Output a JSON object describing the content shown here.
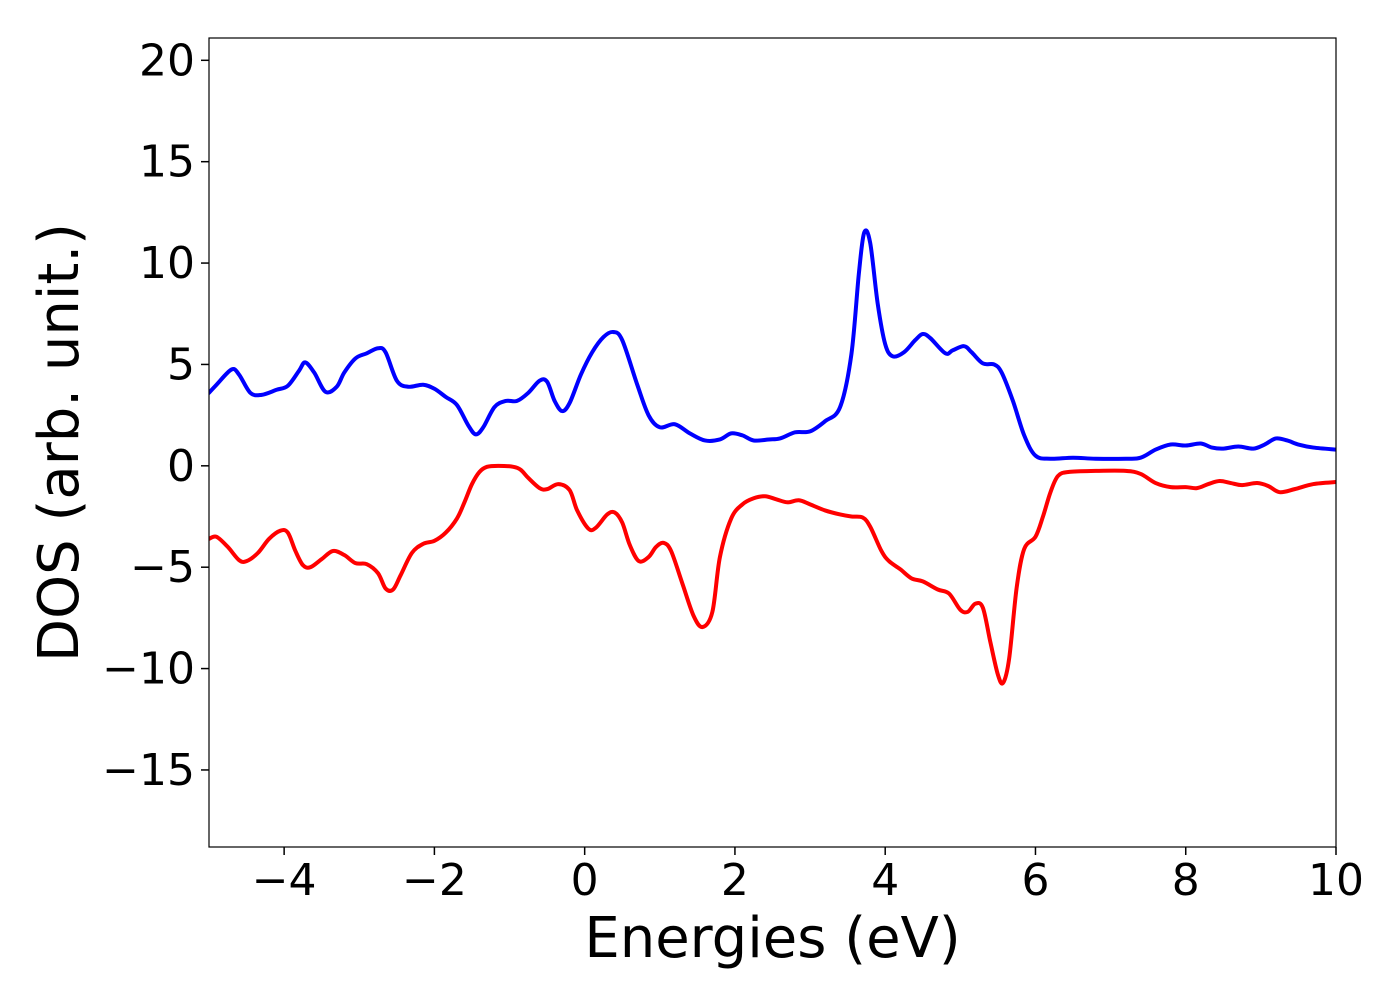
{
  "chart_data": {
    "type": "line",
    "title": "",
    "xlabel": "Energies (eV)",
    "ylabel": "DOS (arb. unit.)",
    "xlim": [
      -5,
      10
    ],
    "ylim": [
      -18.8,
      21.1
    ],
    "xticks": [
      -4,
      -2,
      0,
      2,
      4,
      6,
      8,
      10
    ],
    "yticks": [
      20,
      15,
      10,
      5,
      0,
      -5,
      -10,
      -15
    ],
    "xtick_labels": [
      "−4",
      "−2",
      "0",
      "2",
      "4",
      "6",
      "8",
      "10"
    ],
    "ytick_labels": [
      "20",
      "15",
      "10",
      "5",
      "0",
      "−5",
      "−10",
      "−15"
    ],
    "grid": false,
    "legend": "none",
    "series": [
      {
        "color": "#0000ff",
        "points": [
          [
            -5,
            3.6
          ],
          [
            -4.9,
            4.0
          ],
          [
            -4.7,
            4.75
          ],
          [
            -4.6,
            4.5
          ],
          [
            -4.45,
            3.6
          ],
          [
            -4.3,
            3.5
          ],
          [
            -4.1,
            3.75
          ],
          [
            -3.95,
            3.95
          ],
          [
            -3.8,
            4.7
          ],
          [
            -3.72,
            5.1
          ],
          [
            -3.6,
            4.6
          ],
          [
            -3.45,
            3.65
          ],
          [
            -3.3,
            3.9
          ],
          [
            -3.2,
            4.6
          ],
          [
            -3.05,
            5.3
          ],
          [
            -2.9,
            5.55
          ],
          [
            -2.75,
            5.8
          ],
          [
            -2.65,
            5.6
          ],
          [
            -2.5,
            4.2
          ],
          [
            -2.35,
            3.9
          ],
          [
            -2.15,
            4.0
          ],
          [
            -2.0,
            3.8
          ],
          [
            -1.85,
            3.4
          ],
          [
            -1.7,
            3.0
          ],
          [
            -1.55,
            2.0
          ],
          [
            -1.45,
            1.55
          ],
          [
            -1.35,
            1.9
          ],
          [
            -1.2,
            2.9
          ],
          [
            -1.05,
            3.2
          ],
          [
            -0.9,
            3.2
          ],
          [
            -0.75,
            3.6
          ],
          [
            -0.6,
            4.2
          ],
          [
            -0.5,
            4.15
          ],
          [
            -0.4,
            3.2
          ],
          [
            -0.3,
            2.7
          ],
          [
            -0.2,
            3.1
          ],
          [
            -0.05,
            4.5
          ],
          [
            0.1,
            5.6
          ],
          [
            0.25,
            6.35
          ],
          [
            0.38,
            6.6
          ],
          [
            0.5,
            6.2
          ],
          [
            0.7,
            4.0
          ],
          [
            0.85,
            2.5
          ],
          [
            1.0,
            1.9
          ],
          [
            1.2,
            2.05
          ],
          [
            1.4,
            1.6
          ],
          [
            1.6,
            1.25
          ],
          [
            1.8,
            1.3
          ],
          [
            1.95,
            1.6
          ],
          [
            2.1,
            1.5
          ],
          [
            2.25,
            1.25
          ],
          [
            2.45,
            1.3
          ],
          [
            2.6,
            1.35
          ],
          [
            2.8,
            1.65
          ],
          [
            3.0,
            1.7
          ],
          [
            3.2,
            2.2
          ],
          [
            3.4,
            2.9
          ],
          [
            3.55,
            5.5
          ],
          [
            3.65,
            9.5
          ],
          [
            3.72,
            11.5
          ],
          [
            3.8,
            11.0
          ],
          [
            3.9,
            8.0
          ],
          [
            4.0,
            6.0
          ],
          [
            4.1,
            5.4
          ],
          [
            4.25,
            5.6
          ],
          [
            4.4,
            6.2
          ],
          [
            4.5,
            6.5
          ],
          [
            4.6,
            6.3
          ],
          [
            4.8,
            5.55
          ],
          [
            4.9,
            5.7
          ],
          [
            5.05,
            5.9
          ],
          [
            5.15,
            5.6
          ],
          [
            5.3,
            5.05
          ],
          [
            5.45,
            5.0
          ],
          [
            5.55,
            4.6
          ],
          [
            5.7,
            3.2
          ],
          [
            5.85,
            1.5
          ],
          [
            6.0,
            0.5
          ],
          [
            6.2,
            0.35
          ],
          [
            6.5,
            0.4
          ],
          [
            6.8,
            0.35
          ],
          [
            7.2,
            0.35
          ],
          [
            7.4,
            0.4
          ],
          [
            7.6,
            0.8
          ],
          [
            7.8,
            1.05
          ],
          [
            8.0,
            1.0
          ],
          [
            8.2,
            1.1
          ],
          [
            8.35,
            0.9
          ],
          [
            8.5,
            0.85
          ],
          [
            8.7,
            0.95
          ],
          [
            8.9,
            0.85
          ],
          [
            9.05,
            1.05
          ],
          [
            9.2,
            1.35
          ],
          [
            9.35,
            1.25
          ],
          [
            9.5,
            1.05
          ],
          [
            9.7,
            0.9
          ],
          [
            10.0,
            0.8
          ]
        ]
      },
      {
        "color": "#ff0000",
        "points": [
          [
            -5,
            -3.6
          ],
          [
            -4.9,
            -3.5
          ],
          [
            -4.75,
            -4.0
          ],
          [
            -4.6,
            -4.65
          ],
          [
            -4.5,
            -4.7
          ],
          [
            -4.35,
            -4.3
          ],
          [
            -4.2,
            -3.6
          ],
          [
            -4.05,
            -3.2
          ],
          [
            -3.95,
            -3.3
          ],
          [
            -3.85,
            -4.2
          ],
          [
            -3.75,
            -4.9
          ],
          [
            -3.65,
            -5.0
          ],
          [
            -3.5,
            -4.6
          ],
          [
            -3.35,
            -4.2
          ],
          [
            -3.2,
            -4.4
          ],
          [
            -3.05,
            -4.8
          ],
          [
            -2.9,
            -4.85
          ],
          [
            -2.75,
            -5.3
          ],
          [
            -2.65,
            -6.05
          ],
          [
            -2.55,
            -6.1
          ],
          [
            -2.45,
            -5.4
          ],
          [
            -2.3,
            -4.3
          ],
          [
            -2.15,
            -3.85
          ],
          [
            -2.0,
            -3.7
          ],
          [
            -1.85,
            -3.3
          ],
          [
            -1.7,
            -2.6
          ],
          [
            -1.6,
            -1.8
          ],
          [
            -1.5,
            -0.9
          ],
          [
            -1.4,
            -0.3
          ],
          [
            -1.3,
            -0.05
          ],
          [
            -1.15,
            0.0
          ],
          [
            -0.95,
            -0.05
          ],
          [
            -0.85,
            -0.2
          ],
          [
            -0.75,
            -0.6
          ],
          [
            -0.6,
            -1.1
          ],
          [
            -0.5,
            -1.15
          ],
          [
            -0.35,
            -0.9
          ],
          [
            -0.2,
            -1.2
          ],
          [
            -0.1,
            -2.2
          ],
          [
            0.05,
            -3.1
          ],
          [
            0.15,
            -3.05
          ],
          [
            0.3,
            -2.4
          ],
          [
            0.4,
            -2.3
          ],
          [
            0.5,
            -2.8
          ],
          [
            0.6,
            -3.9
          ],
          [
            0.72,
            -4.7
          ],
          [
            0.85,
            -4.5
          ],
          [
            0.95,
            -4.0
          ],
          [
            1.05,
            -3.8
          ],
          [
            1.15,
            -4.2
          ],
          [
            1.3,
            -5.8
          ],
          [
            1.45,
            -7.4
          ],
          [
            1.57,
            -7.95
          ],
          [
            1.7,
            -7.2
          ],
          [
            1.8,
            -4.5
          ],
          [
            1.95,
            -2.6
          ],
          [
            2.1,
            -1.9
          ],
          [
            2.25,
            -1.6
          ],
          [
            2.4,
            -1.5
          ],
          [
            2.55,
            -1.65
          ],
          [
            2.7,
            -1.8
          ],
          [
            2.85,
            -1.7
          ],
          [
            3.0,
            -1.9
          ],
          [
            3.2,
            -2.2
          ],
          [
            3.4,
            -2.4
          ],
          [
            3.55,
            -2.5
          ],
          [
            3.7,
            -2.55
          ],
          [
            3.8,
            -3.0
          ],
          [
            3.95,
            -4.2
          ],
          [
            4.05,
            -4.7
          ],
          [
            4.2,
            -5.1
          ],
          [
            4.35,
            -5.55
          ],
          [
            4.5,
            -5.7
          ],
          [
            4.7,
            -6.1
          ],
          [
            4.85,
            -6.3
          ],
          [
            5.0,
            -7.1
          ],
          [
            5.1,
            -7.2
          ],
          [
            5.2,
            -6.8
          ],
          [
            5.3,
            -7.0
          ],
          [
            5.4,
            -8.7
          ],
          [
            5.5,
            -10.3
          ],
          [
            5.57,
            -10.7
          ],
          [
            5.65,
            -9.5
          ],
          [
            5.75,
            -6.0
          ],
          [
            5.85,
            -4.1
          ],
          [
            6.0,
            -3.5
          ],
          [
            6.1,
            -2.5
          ],
          [
            6.2,
            -1.3
          ],
          [
            6.3,
            -0.5
          ],
          [
            6.45,
            -0.3
          ],
          [
            6.8,
            -0.25
          ],
          [
            7.2,
            -0.25
          ],
          [
            7.4,
            -0.4
          ],
          [
            7.6,
            -0.85
          ],
          [
            7.8,
            -1.05
          ],
          [
            8.0,
            -1.05
          ],
          [
            8.15,
            -1.1
          ],
          [
            8.3,
            -0.9
          ],
          [
            8.45,
            -0.75
          ],
          [
            8.6,
            -0.85
          ],
          [
            8.75,
            -0.95
          ],
          [
            8.95,
            -0.85
          ],
          [
            9.1,
            -1.0
          ],
          [
            9.25,
            -1.3
          ],
          [
            9.45,
            -1.15
          ],
          [
            9.7,
            -0.9
          ],
          [
            10.0,
            -0.8
          ]
        ]
      }
    ]
  }
}
